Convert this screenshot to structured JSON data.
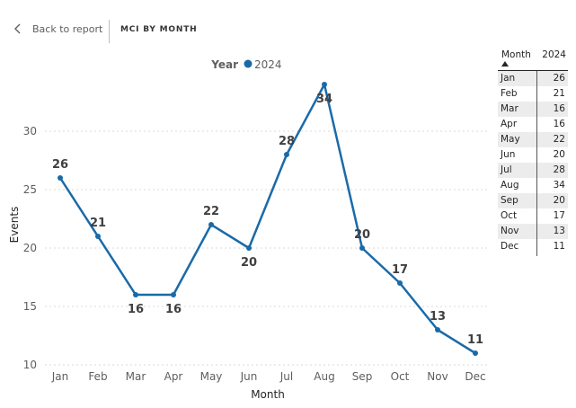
{
  "nav": {
    "back_label": "Back to report",
    "page_title": "MCI BY MONTH"
  },
  "legend": {
    "title": "Year",
    "series_label": "2024"
  },
  "colors": {
    "series": "#1a6aa8",
    "grid": "#d9d9d9",
    "axis_text": "#605e5c"
  },
  "chart_data": {
    "type": "line",
    "title": "",
    "xlabel": "Month",
    "ylabel": "Events",
    "categories": [
      "Jan",
      "Feb",
      "Mar",
      "Apr",
      "May",
      "Jun",
      "Jul",
      "Aug",
      "Sep",
      "Oct",
      "Nov",
      "Dec"
    ],
    "series": [
      {
        "name": "2024",
        "values": [
          26,
          21,
          16,
          16,
          22,
          20,
          28,
          34,
          20,
          17,
          13,
          11
        ]
      }
    ],
    "label_positions": [
      "above",
      "above",
      "below",
      "below",
      "above",
      "below",
      "above",
      "below",
      "above",
      "above",
      "above",
      "above"
    ],
    "yticks": [
      10,
      15,
      20,
      25,
      30
    ],
    "ylim": [
      10,
      34
    ],
    "grid": true,
    "legend_position": "top-center"
  },
  "table": {
    "headers": {
      "month": "Month",
      "year": "2024"
    },
    "rows": [
      {
        "month": "Jan",
        "value": "26"
      },
      {
        "month": "Feb",
        "value": "21"
      },
      {
        "month": "Mar",
        "value": "16"
      },
      {
        "month": "Apr",
        "value": "16"
      },
      {
        "month": "May",
        "value": "22"
      },
      {
        "month": "Jun",
        "value": "20"
      },
      {
        "month": "Jul",
        "value": "28"
      },
      {
        "month": "Aug",
        "value": "34"
      },
      {
        "month": "Sep",
        "value": "20"
      },
      {
        "month": "Oct",
        "value": "17"
      },
      {
        "month": "Nov",
        "value": "13"
      },
      {
        "month": "Dec",
        "value": "11"
      }
    ]
  }
}
